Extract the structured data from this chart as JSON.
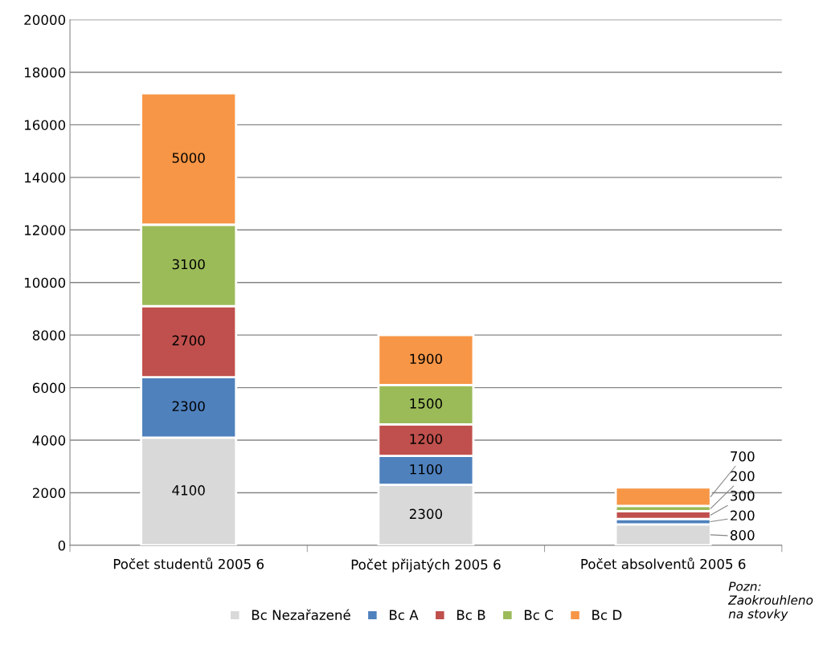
{
  "chart_data": {
    "type": "bar",
    "stacked": true,
    "categories": [
      "Počet studentů 2005 6",
      "Počet přijatých 2005 6",
      "Počet absolventů 2005 6"
    ],
    "series": [
      {
        "name": "Bc Nezařazené",
        "color": "#d9d9d9",
        "values": [
          4100,
          2300,
          800
        ]
      },
      {
        "name": "Bc A",
        "color": "#4f81bd",
        "values": [
          2300,
          1100,
          200
        ]
      },
      {
        "name": "Bc B",
        "color": "#c0504d",
        "values": [
          2700,
          1200,
          300
        ]
      },
      {
        "name": "Bc C",
        "color": "#9bbb59",
        "values": [
          3100,
          1500,
          200
        ]
      },
      {
        "name": "Bc D",
        "color": "#f79646",
        "values": [
          5000,
          1900,
          700
        ]
      }
    ],
    "ylim": [
      0,
      20000
    ],
    "yticks": [
      0,
      2000,
      4000,
      6000,
      8000,
      10000,
      12000,
      14000,
      16000,
      18000,
      20000
    ],
    "grid": "y",
    "legend": "bottom",
    "data_labels": true,
    "annotations": [
      "Pozn: Zaokrouhleno na stovky"
    ]
  }
}
